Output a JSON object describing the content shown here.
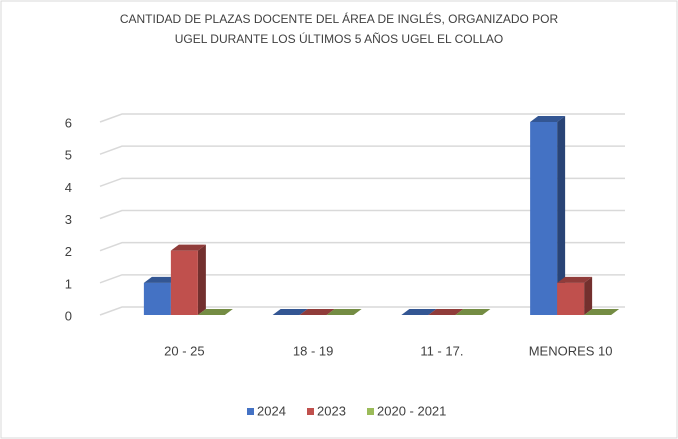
{
  "chart_data": {
    "type": "bar3d",
    "title": [
      "CANTIDAD DE PLAZAS DOCENTE DEL ÁREA DE INGLÉS, ORGANIZADO POR",
      "UGEL DURANTE LOS ÚLTIMOS 5 AÑOS   UGEL EL COLLAO"
    ],
    "categories": [
      "20 - 25",
      "18 - 19",
      "11 - 17.",
      "MENORES 10"
    ],
    "series": [
      {
        "name": "2024",
        "color": "#4472c4",
        "values": [
          1,
          0,
          0,
          6
        ]
      },
      {
        "name": "2023",
        "color": "#c0504d",
        "values": [
          2,
          0,
          0,
          1
        ]
      },
      {
        "name": "2020 - 2021",
        "color": "#9bbb59",
        "values": [
          0,
          0,
          0,
          0
        ]
      }
    ],
    "ylim": [
      0,
      6
    ],
    "yticks": [
      0,
      1,
      2,
      3,
      4,
      5,
      6
    ],
    "grid": true,
    "legend": "bottom"
  }
}
